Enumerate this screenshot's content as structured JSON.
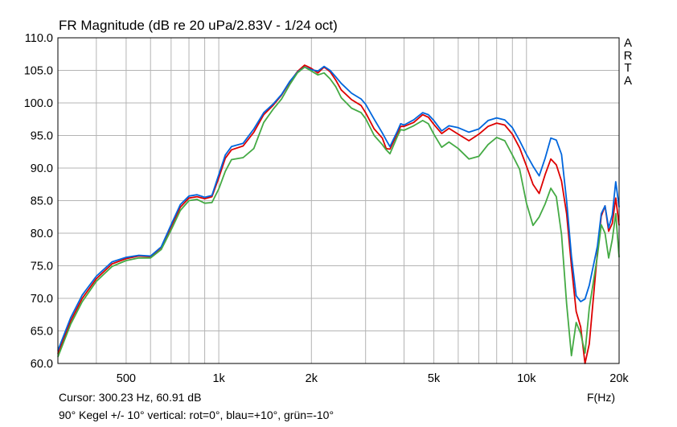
{
  "chart_data": {
    "type": "line",
    "title": "FR Magnitude (dB re 20 uPa/2.83V - 1/24 oct)",
    "watermark": [
      "A",
      "R",
      "T",
      "A"
    ],
    "xlabel": "F(Hz)",
    "ylabel": "",
    "xscale": "log",
    "xlim": [
      300,
      20000
    ],
    "ylim": [
      60,
      110
    ],
    "x_ticks": [
      "500",
      "1k",
      "2k",
      "5k",
      "10k",
      "20k"
    ],
    "y_ticks": [
      "60.0",
      "65.0",
      "70.0",
      "75.0",
      "80.0",
      "85.0",
      "90.0",
      "95.0",
      "100.0",
      "105.0",
      "110.0"
    ],
    "grid": true,
    "background": "#ffffff",
    "series": [
      {
        "label": "rot=0°",
        "color": "#dd0000",
        "points": [
          [
            300,
            61.5
          ],
          [
            330,
            66.5
          ],
          [
            360,
            70
          ],
          [
            400,
            73
          ],
          [
            450,
            75.3
          ],
          [
            500,
            76.1
          ],
          [
            550,
            76.5
          ],
          [
            600,
            76.4
          ],
          [
            650,
            77.8
          ],
          [
            700,
            81
          ],
          [
            750,
            84
          ],
          [
            800,
            85.4
          ],
          [
            850,
            85.6
          ],
          [
            900,
            85.3
          ],
          [
            950,
            85.6
          ],
          [
            1000,
            88.5
          ],
          [
            1050,
            91.5
          ],
          [
            1100,
            92.8
          ],
          [
            1200,
            93.4
          ],
          [
            1300,
            95.5
          ],
          [
            1400,
            98.2
          ],
          [
            1500,
            99.6
          ],
          [
            1600,
            101.2
          ],
          [
            1700,
            103.2
          ],
          [
            1800,
            104.8
          ],
          [
            1900,
            105.8
          ],
          [
            2000,
            105.3
          ],
          [
            2100,
            104.6
          ],
          [
            2200,
            105.5
          ],
          [
            2300,
            104.8
          ],
          [
            2400,
            103.5
          ],
          [
            2500,
            102
          ],
          [
            2700,
            100.5
          ],
          [
            2900,
            99.6
          ],
          [
            3000,
            98.5
          ],
          [
            3200,
            96
          ],
          [
            3400,
            94.6
          ],
          [
            3500,
            93
          ],
          [
            3600,
            92.9
          ],
          [
            3800,
            95.3
          ],
          [
            3900,
            96.4
          ],
          [
            4000,
            96.4
          ],
          [
            4300,
            97
          ],
          [
            4600,
            98.2
          ],
          [
            4800,
            97.8
          ],
          [
            5000,
            96.7
          ],
          [
            5300,
            95.3
          ],
          [
            5600,
            96.1
          ],
          [
            6000,
            95.2
          ],
          [
            6500,
            94.2
          ],
          [
            7000,
            95.2
          ],
          [
            7500,
            96.4
          ],
          [
            8000,
            96.9
          ],
          [
            8500,
            96.6
          ],
          [
            9000,
            95.2
          ],
          [
            9500,
            93.1
          ],
          [
            10000,
            90.3
          ],
          [
            10500,
            87.5
          ],
          [
            11000,
            86.1
          ],
          [
            11500,
            89
          ],
          [
            12000,
            91.4
          ],
          [
            12500,
            90.5
          ],
          [
            13000,
            88
          ],
          [
            13500,
            83
          ],
          [
            14000,
            75
          ],
          [
            14500,
            68
          ],
          [
            15000,
            65.6
          ],
          [
            15500,
            59.5
          ],
          [
            16000,
            63
          ],
          [
            17000,
            77
          ],
          [
            17500,
            82.6
          ],
          [
            18000,
            84.2
          ],
          [
            18500,
            80.3
          ],
          [
            19000,
            81.5
          ],
          [
            19500,
            85.4
          ],
          [
            20000,
            81.2
          ]
        ]
      },
      {
        "label": "blau=+10°",
        "color": "#0066dd",
        "points": [
          [
            300,
            62
          ],
          [
            330,
            67
          ],
          [
            360,
            70.5
          ],
          [
            400,
            73.4
          ],
          [
            450,
            75.6
          ],
          [
            500,
            76.3
          ],
          [
            550,
            76.6
          ],
          [
            600,
            76.5
          ],
          [
            650,
            77.9
          ],
          [
            700,
            81.3
          ],
          [
            750,
            84.4
          ],
          [
            800,
            85.7
          ],
          [
            850,
            85.9
          ],
          [
            900,
            85.5
          ],
          [
            950,
            85.8
          ],
          [
            1000,
            89
          ],
          [
            1050,
            92
          ],
          [
            1100,
            93.3
          ],
          [
            1200,
            93.8
          ],
          [
            1300,
            96
          ],
          [
            1400,
            98.5
          ],
          [
            1500,
            99.8
          ],
          [
            1600,
            101.3
          ],
          [
            1700,
            103.3
          ],
          [
            1800,
            104.7
          ],
          [
            1900,
            105.5
          ],
          [
            2000,
            105.1
          ],
          [
            2100,
            104.9
          ],
          [
            2200,
            105.6
          ],
          [
            2300,
            105
          ],
          [
            2400,
            104
          ],
          [
            2500,
            103
          ],
          [
            2700,
            101.5
          ],
          [
            2900,
            100.6
          ],
          [
            3000,
            99.8
          ],
          [
            3200,
            97.5
          ],
          [
            3400,
            95.4
          ],
          [
            3500,
            94.3
          ],
          [
            3600,
            93.3
          ],
          [
            3800,
            95.6
          ],
          [
            3900,
            96.8
          ],
          [
            4000,
            96.6
          ],
          [
            4300,
            97.4
          ],
          [
            4600,
            98.5
          ],
          [
            4800,
            98.2
          ],
          [
            5000,
            97.3
          ],
          [
            5300,
            95.7
          ],
          [
            5600,
            96.5
          ],
          [
            6000,
            96.2
          ],
          [
            6500,
            95.5
          ],
          [
            7000,
            96
          ],
          [
            7500,
            97.3
          ],
          [
            8000,
            97.7
          ],
          [
            8500,
            97.4
          ],
          [
            9000,
            96.2
          ],
          [
            9500,
            94.2
          ],
          [
            10000,
            92.1
          ],
          [
            10500,
            90.3
          ],
          [
            11000,
            88.8
          ],
          [
            11500,
            91.5
          ],
          [
            12000,
            94.6
          ],
          [
            12500,
            94.3
          ],
          [
            13000,
            92.1
          ],
          [
            13500,
            85
          ],
          [
            14000,
            76.5
          ],
          [
            14500,
            70.4
          ],
          [
            15000,
            69.5
          ],
          [
            15500,
            69.9
          ],
          [
            16000,
            72
          ],
          [
            17000,
            78
          ],
          [
            17500,
            83
          ],
          [
            18000,
            84.2
          ],
          [
            18500,
            80.8
          ],
          [
            19000,
            82.8
          ],
          [
            19500,
            87.9
          ],
          [
            20000,
            84
          ]
        ]
      },
      {
        "label": "grün=-10°",
        "color": "#44aa44",
        "points": [
          [
            300,
            61
          ],
          [
            330,
            66
          ],
          [
            360,
            69.5
          ],
          [
            400,
            72.6
          ],
          [
            450,
            74.9
          ],
          [
            500,
            75.8
          ],
          [
            550,
            76.2
          ],
          [
            600,
            76.2
          ],
          [
            650,
            77.5
          ],
          [
            700,
            80.5
          ],
          [
            750,
            83.5
          ],
          [
            800,
            85
          ],
          [
            850,
            85.2
          ],
          [
            900,
            84.6
          ],
          [
            950,
            84.7
          ],
          [
            1000,
            86.8
          ],
          [
            1050,
            89.5
          ],
          [
            1100,
            91.3
          ],
          [
            1200,
            91.6
          ],
          [
            1300,
            93
          ],
          [
            1400,
            97
          ],
          [
            1500,
            99
          ],
          [
            1600,
            100.6
          ],
          [
            1700,
            102.8
          ],
          [
            1800,
            104.6
          ],
          [
            1900,
            105.5
          ],
          [
            2000,
            104.9
          ],
          [
            2100,
            104.3
          ],
          [
            2200,
            104.6
          ],
          [
            2300,
            103.7
          ],
          [
            2400,
            102.5
          ],
          [
            2500,
            100.8
          ],
          [
            2700,
            99.2
          ],
          [
            2900,
            98.5
          ],
          [
            3000,
            97.6
          ],
          [
            3200,
            95
          ],
          [
            3400,
            93.6
          ],
          [
            3500,
            92.8
          ],
          [
            3600,
            92.2
          ],
          [
            3800,
            94.8
          ],
          [
            3900,
            95.9
          ],
          [
            4000,
            95.8
          ],
          [
            4300,
            96.5
          ],
          [
            4600,
            97.3
          ],
          [
            4800,
            96.8
          ],
          [
            5000,
            95.2
          ],
          [
            5300,
            93.2
          ],
          [
            5600,
            94
          ],
          [
            6000,
            93
          ],
          [
            6500,
            91.4
          ],
          [
            7000,
            91.8
          ],
          [
            7500,
            93.6
          ],
          [
            8000,
            94.7
          ],
          [
            8500,
            94.2
          ],
          [
            9000,
            92
          ],
          [
            9500,
            89.8
          ],
          [
            10000,
            84.6
          ],
          [
            10500,
            81.2
          ],
          [
            11000,
            82.5
          ],
          [
            11500,
            84.5
          ],
          [
            12000,
            86.9
          ],
          [
            12500,
            85.6
          ],
          [
            13000,
            79.8
          ],
          [
            13500,
            69.2
          ],
          [
            14000,
            61.2
          ],
          [
            14500,
            66.3
          ],
          [
            15000,
            64.6
          ],
          [
            15500,
            61.6
          ],
          [
            16000,
            68.5
          ],
          [
            17000,
            76.5
          ],
          [
            17500,
            81.3
          ],
          [
            18000,
            80
          ],
          [
            18500,
            76.2
          ],
          [
            19000,
            79
          ],
          [
            19500,
            83
          ],
          [
            20000,
            76.3
          ]
        ]
      }
    ]
  },
  "status": {
    "cursor": "Cursor: 300.23 Hz, 60.91 dB",
    "caption": "90° Kegel +/- 10° vertical: rot=0°, blau=+10°, grün=-10°"
  }
}
